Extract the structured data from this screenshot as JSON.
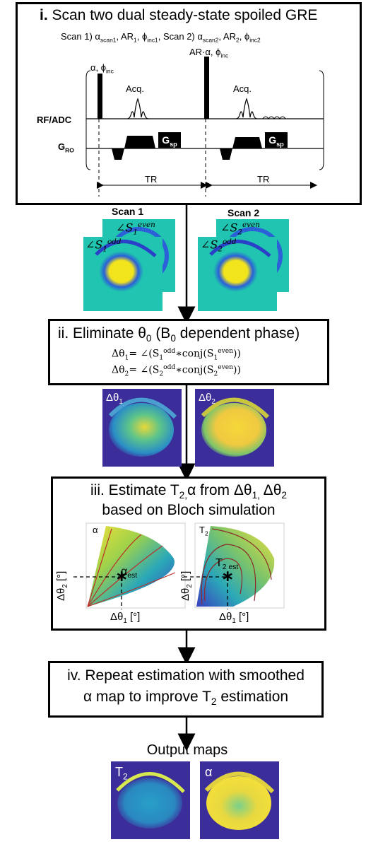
{
  "step1": {
    "numeral": "i.",
    "title": "Scan two dual steady-state spoiled GRE",
    "scan1_params": "Scan 1) α",
    "scan1_sub_a": "scan1",
    "scan1_ar": ", AR",
    "scan1_sub_ar": "1",
    "scan1_phi": ", ϕ",
    "scan1_sub_phi": "inc1",
    "scan2_params": ", Scan 2) α",
    "scan2_sub_a": "scan2",
    "scan2_ar": ", AR",
    "scan2_sub_ar": "2",
    "scan2_phi": ", ϕ",
    "scan2_sub_phi": "inc2",
    "pulse1_label": "α, ϕ",
    "pulse1_sub": "inc",
    "pulse2_label": "AR·α, ϕ",
    "pulse2_sub": "inc",
    "acq_label": "Acq.",
    "rf_label": "RF/ADC",
    "gro_label": "G",
    "gro_sub": "RO",
    "gsp_label": "G",
    "gsp_sub": "sp",
    "tr_label": "TR"
  },
  "scan_images": {
    "scan1_label": "Scan 1",
    "scan2_label": "Scan 2",
    "s1_even": "∠S",
    "s1_even_sub": "1",
    "s1_even_sup": "even",
    "s1_odd": "∠S",
    "s1_odd_sub": "1",
    "s1_odd_sup": "odd",
    "s2_even": "∠S",
    "s2_even_sub": "2",
    "s2_even_sup": "even",
    "s2_odd": "∠S",
    "s2_odd_sub": "2",
    "s2_odd_sup": "odd"
  },
  "step2": {
    "title_a": "ii. Eliminate θ",
    "title_sub": "0",
    "title_b": " (B",
    "title_sub2": "0",
    "title_c": " dependent phase)",
    "eq1_lhs": "Δθ",
    "eq1_sub": "1",
    "eq1_mid": "= ∠(S",
    "eq1_s_sub": "1",
    "eq1_s_sup": "odd",
    "eq1_conj": "∗conj(S",
    "eq1_c_sub": "1",
    "eq1_c_sup": "even",
    "eq1_end": "))",
    "eq2_lhs": "Δθ",
    "eq2_sub": "2",
    "eq2_mid": "= ∠(S",
    "eq2_s_sub": "2",
    "eq2_s_sup": "odd",
    "eq2_conj": "∗conj(S",
    "eq2_c_sub": "2",
    "eq2_c_sup": "even",
    "eq2_end": "))",
    "img1_label": "Δθ",
    "img1_sub": "1",
    "img2_label": "Δθ",
    "img2_sub": "2"
  },
  "step3": {
    "line1_a": "iii. Estimate T",
    "line1_sub": "2,",
    "line1_b": "α from Δθ",
    "line1_sub2": "1,",
    "line1_c": " Δθ",
    "line1_sub3": "2",
    "line2": "based on Bloch simulation",
    "plot1_corner": "α",
    "plot1_est": "α",
    "plot1_est_sub": "est",
    "plot2_corner": "T",
    "plot2_corner_sub": "2",
    "plot2_est": "T",
    "plot2_est_sub": "2 est",
    "ylabel": "Δθ",
    "ylabel_sub": "2",
    "ylabel_unit": " [°]",
    "xlabel": "Δθ",
    "xlabel_sub": "1",
    "xlabel_unit": " [°]",
    "marker": "∗"
  },
  "step4": {
    "line1": "iv. Repeat estimation with smoothed",
    "line2": "α map to improve T",
    "line2_sub": "2",
    "line2_end": " estimation"
  },
  "output": {
    "title": "Output maps",
    "map1_label": "T",
    "map1_sub": "2",
    "map2_label": "α"
  },
  "colors": {
    "phase_cyan": "#21c4b0",
    "phase_yellow": "#f2e51d",
    "phase_blue": "#3a3fc0",
    "map_dark": "#3b2e9a",
    "map_mid": "#27a0c8",
    "map_bright": "#f4e03a"
  }
}
